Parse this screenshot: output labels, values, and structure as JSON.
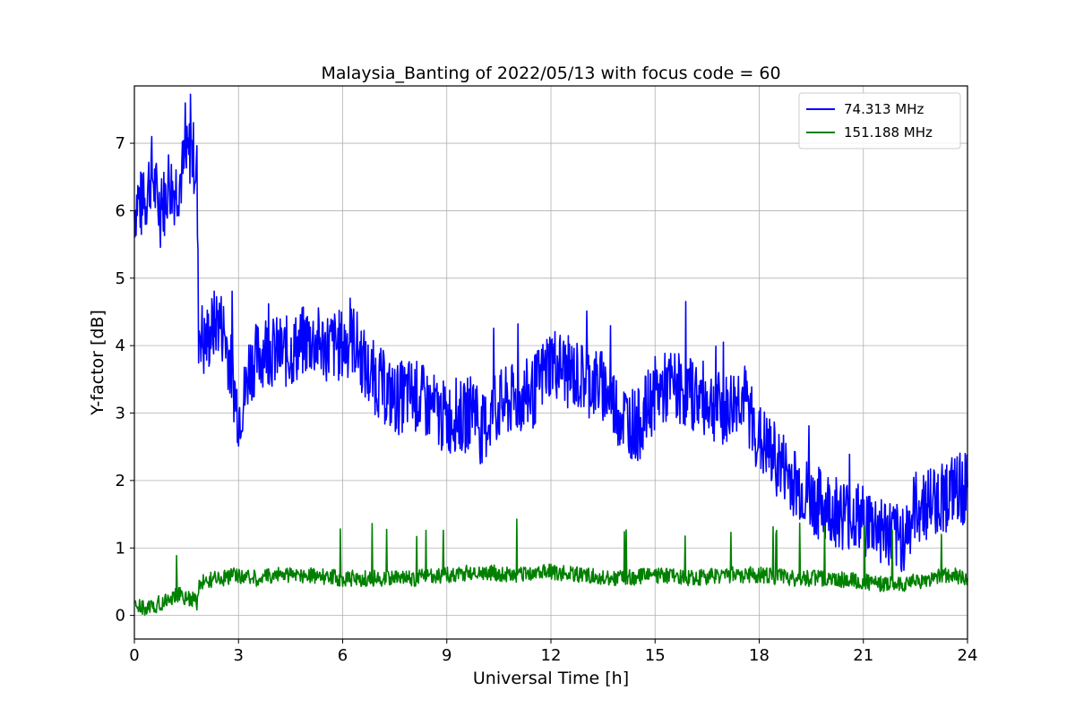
{
  "chart_data": {
    "type": "line",
    "title": "Malaysia_Banting of 2022/05/13 with focus code = 60",
    "xlabel": "Universal Time [h]",
    "ylabel": "Y-factor [dB]",
    "xlim": [
      0,
      24
    ],
    "ylim": [
      -0.35,
      7.85
    ],
    "xticks": [
      0,
      3,
      6,
      9,
      12,
      15,
      18,
      21,
      24
    ],
    "yticks": [
      0,
      1,
      2,
      3,
      4,
      5,
      6,
      7
    ],
    "grid": true,
    "legend_position": "top-right",
    "series": [
      {
        "name": "  74.313 MHz",
        "color": "#0000ff",
        "x": [
          0,
          0.1,
          0.25,
          0.4,
          0.5,
          0.6,
          0.75,
          0.9,
          1.0,
          1.1,
          1.25,
          1.4,
          1.5,
          1.6,
          1.7,
          1.8,
          1.85,
          1.9,
          2.0,
          2.2,
          2.4,
          2.6,
          2.8,
          3.0,
          3.2,
          3.3,
          3.5,
          3.8,
          4.0,
          4.5,
          5.0,
          5.5,
          6.0,
          6.3,
          6.5,
          6.7,
          7.0,
          7.3,
          7.5,
          8.0,
          8.5,
          9.0,
          9.3,
          9.5,
          9.8,
          10.0,
          10.3,
          10.5,
          11.0,
          11.5,
          12.0,
          12.5,
          13.0,
          13.5,
          14.0,
          14.5,
          15.0,
          15.5,
          16.0,
          16.5,
          17.0,
          17.5,
          18.0,
          18.5,
          19.0,
          19.5,
          20.0,
          20.5,
          21.0,
          21.5,
          22.0,
          22.3,
          22.5,
          23.0,
          23.5,
          24.0
        ],
        "values": [
          6.0,
          6.2,
          6.0,
          6.4,
          6.6,
          6.3,
          6.0,
          6.2,
          6.5,
          6.3,
          6.4,
          6.6,
          6.7,
          6.9,
          6.8,
          6.6,
          4.2,
          4.3,
          4.0,
          4.2,
          4.4,
          4.2,
          3.6,
          3.0,
          3.3,
          3.7,
          3.8,
          4.0,
          3.9,
          3.9,
          4.1,
          4.0,
          4.0,
          4.1,
          3.9,
          3.6,
          3.5,
          3.3,
          3.2,
          3.3,
          3.1,
          2.9,
          3.0,
          2.9,
          3.2,
          2.7,
          3.0,
          3.1,
          3.2,
          3.3,
          3.8,
          3.6,
          3.5,
          3.4,
          3.0,
          2.8,
          3.3,
          3.4,
          3.3,
          3.2,
          3.0,
          3.3,
          2.6,
          2.3,
          2.0,
          1.7,
          1.6,
          1.5,
          1.4,
          1.3,
          1.1,
          1.3,
          1.6,
          1.7,
          1.8,
          1.9
        ]
      },
      {
        "name": "151.188 MHz",
        "color": "#008000",
        "x": [
          0,
          0.3,
          0.6,
          1.0,
          1.3,
          1.6,
          1.8,
          1.9,
          2.0,
          2.5,
          3.0,
          3.5,
          4.0,
          5.0,
          6.0,
          7.0,
          8.0,
          9.0,
          10.0,
          11.0,
          12.0,
          13.0,
          14.0,
          15.0,
          16.0,
          17.0,
          18.0,
          19.0,
          20.0,
          21.0,
          22.0,
          22.5,
          23.0,
          23.5,
          24.0
        ],
        "values": [
          0.15,
          0.1,
          0.15,
          0.25,
          0.3,
          0.25,
          0.2,
          0.5,
          0.5,
          0.55,
          0.6,
          0.55,
          0.6,
          0.6,
          0.55,
          0.55,
          0.55,
          0.6,
          0.65,
          0.6,
          0.65,
          0.6,
          0.55,
          0.6,
          0.55,
          0.6,
          0.6,
          0.55,
          0.55,
          0.5,
          0.45,
          0.5,
          0.55,
          0.6,
          0.55
        ]
      }
    ]
  }
}
